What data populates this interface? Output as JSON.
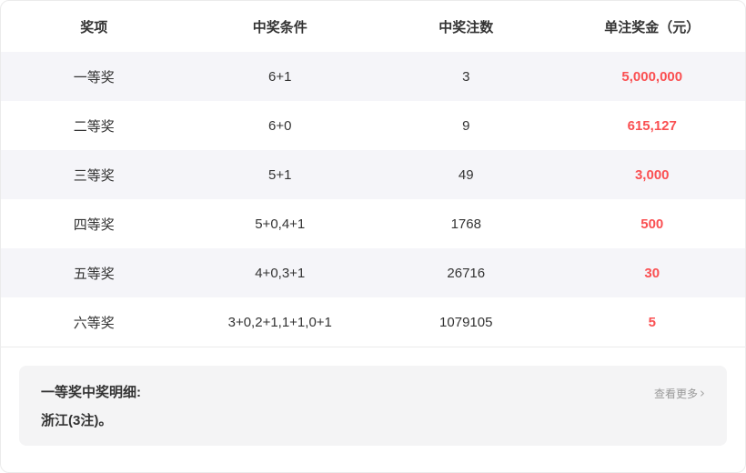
{
  "table": {
    "headers": [
      "奖项",
      "中奖条件",
      "中奖注数",
      "单注奖金（元）"
    ],
    "rows": [
      {
        "level": "一等奖",
        "condition": "6+1",
        "count": "3",
        "prize": "5,000,000"
      },
      {
        "level": "二等奖",
        "condition": "6+0",
        "count": "9",
        "prize": "615,127"
      },
      {
        "level": "三等奖",
        "condition": "5+1",
        "count": "49",
        "prize": "3,000"
      },
      {
        "level": "四等奖",
        "condition": "5+0,4+1",
        "count": "1768",
        "prize": "500"
      },
      {
        "level": "五等奖",
        "condition": "4+0,3+1",
        "count": "26716",
        "prize": "30"
      },
      {
        "level": "六等奖",
        "condition": "3+0,2+1,1+1,0+1",
        "count": "1079105",
        "prize": "5"
      }
    ]
  },
  "detail": {
    "title": "一等奖中奖明细:",
    "content": "浙江(3注)。",
    "more_label": "查看更多",
    "chevron": "›"
  },
  "colors": {
    "prize_red": "#fa5052",
    "stripe_bg": "#f5f5f9",
    "detail_bg": "#f4f4f5",
    "text_dark": "#333333",
    "text_gray": "#999999",
    "border": "#ebebeb"
  }
}
